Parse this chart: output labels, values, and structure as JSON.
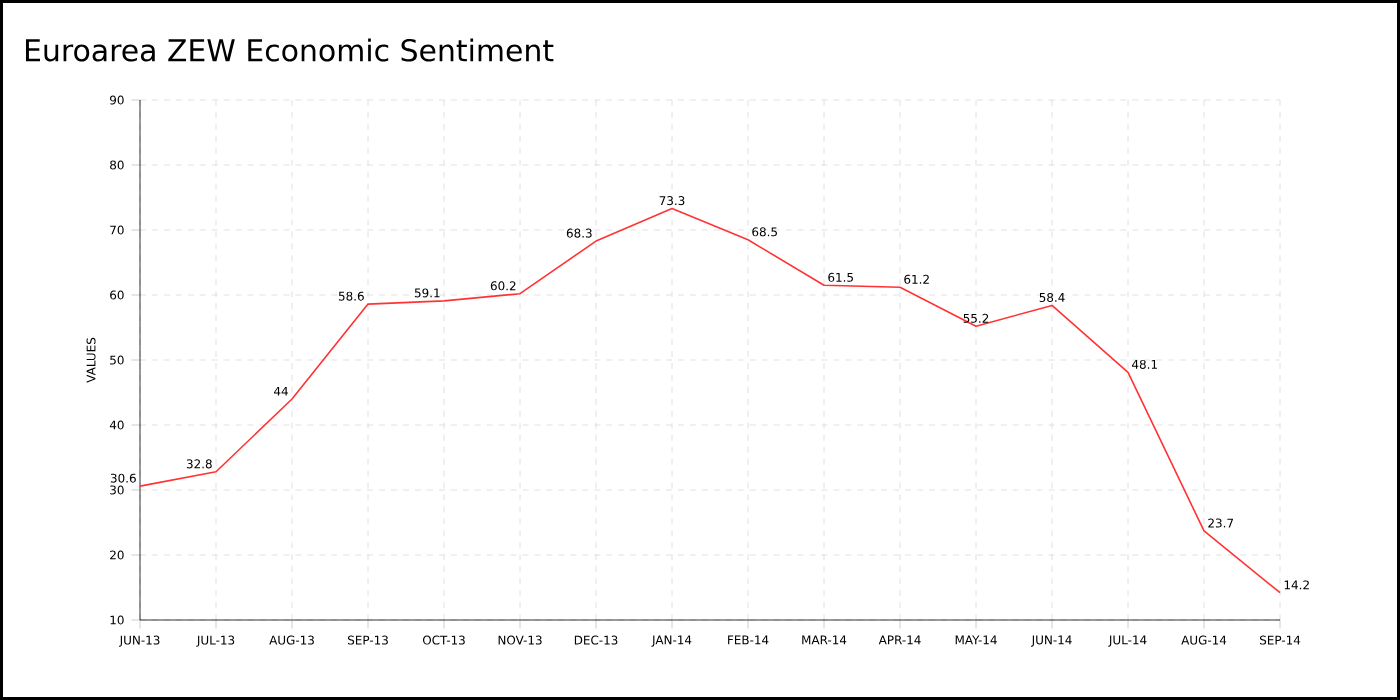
{
  "chart_data": {
    "type": "line",
    "title": "Euroarea ZEW Economic Sentiment",
    "ylabel": "VALUES",
    "categories": [
      "JUN-13",
      "JUL-13",
      "AUG-13",
      "SEP-13",
      "OCT-13",
      "NOV-13",
      "DEC-13",
      "JAN-14",
      "FEB-14",
      "MAR-14",
      "APR-14",
      "MAY-14",
      "JUN-14",
      "JUL-14",
      "AUG-14",
      "SEP-14"
    ],
    "values": [
      30.6,
      32.8,
      44,
      58.6,
      59.1,
      60.2,
      68.3,
      73.3,
      68.5,
      61.5,
      61.2,
      55.2,
      58.4,
      48.1,
      23.7,
      14.2
    ],
    "color": "#ff3333",
    "ylim": [
      10,
      90
    ],
    "yticks": [
      10,
      20,
      30,
      40,
      50,
      60,
      70,
      80,
      90
    ],
    "grid": true,
    "data_labels": true,
    "marker": "none",
    "line_style": "solid"
  }
}
